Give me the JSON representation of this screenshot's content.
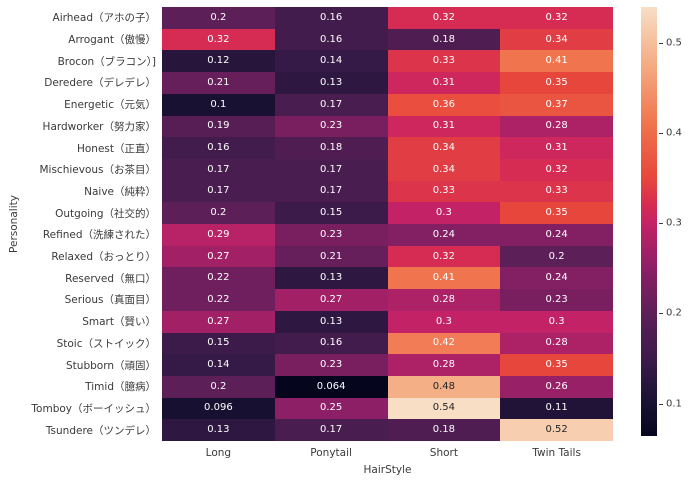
{
  "figure": {
    "background": "#ffffff",
    "label_color": "#3a3a3a",
    "annot_light": "#ffffff",
    "annot_dark": "#262626"
  },
  "chart_data": {
    "type": "heatmap",
    "title": "",
    "xlabel": "HairStyle",
    "ylabel": "Personality",
    "grid": false,
    "legend_position": "right-colorbar",
    "columns": [
      "Long",
      "Ponytail",
      "Short",
      "Twin Tails"
    ],
    "rows": [
      "Airhead（アホの子）",
      "Arrogant（傲慢）",
      "Brocon（ブラコン）]",
      "Deredere（デレデレ）",
      "Energetic（元気）",
      "Hardworker（努力家）",
      "Honest（正直）",
      "Mischievous（お茶目）",
      "Naive（純粋）",
      "Outgoing（社交的）",
      "Refined（洗練された）",
      "Relaxed（おっとり）",
      "Reserved（無口）",
      "Serious（真面目）",
      "Smart（賢い）",
      "Stoic（ストイック）",
      "Stubborn（頑固）",
      "Timid（臆病）",
      "Tomboy（ボーイッシュ）",
      "Tsundere（ツンデレ）"
    ],
    "values": [
      [
        0.2,
        0.16,
        0.32,
        0.32
      ],
      [
        0.32,
        0.16,
        0.18,
        0.34
      ],
      [
        0.12,
        0.14,
        0.33,
        0.41
      ],
      [
        0.21,
        0.13,
        0.31,
        0.35
      ],
      [
        0.1,
        0.17,
        0.36,
        0.37
      ],
      [
        0.19,
        0.23,
        0.31,
        0.28
      ],
      [
        0.16,
        0.18,
        0.34,
        0.31
      ],
      [
        0.17,
        0.17,
        0.34,
        0.32
      ],
      [
        0.17,
        0.17,
        0.33,
        0.33
      ],
      [
        0.2,
        0.15,
        0.3,
        0.35
      ],
      [
        0.29,
        0.23,
        0.24,
        0.24
      ],
      [
        0.27,
        0.21,
        0.32,
        0.2
      ],
      [
        0.22,
        0.13,
        0.41,
        0.24
      ],
      [
        0.22,
        0.27,
        0.28,
        0.23
      ],
      [
        0.27,
        0.13,
        0.3,
        0.3
      ],
      [
        0.15,
        0.16,
        0.42,
        0.28
      ],
      [
        0.14,
        0.23,
        0.28,
        0.35
      ],
      [
        0.2,
        0.064,
        0.48,
        0.26
      ],
      [
        0.096,
        0.25,
        0.54,
        0.11
      ],
      [
        0.13,
        0.17,
        0.18,
        0.52
      ]
    ],
    "value_format": ".2g",
    "colorbar": {
      "vmin": 0.064,
      "vmax": 0.54,
      "tick_labels": [
        "0.5",
        "0.4",
        "0.3",
        "0.2",
        "0.1"
      ],
      "tick_values": [
        0.5,
        0.4,
        0.3,
        0.2,
        0.1
      ]
    },
    "colormap": {
      "name": "rocket",
      "anchors": [
        [
          0.064,
          "#05051E"
        ],
        [
          0.1,
          "#191132"
        ],
        [
          0.15,
          "#3C1B4B"
        ],
        [
          0.2,
          "#5D1F58"
        ],
        [
          0.25,
          "#8C1F66"
        ],
        [
          0.3,
          "#C32366"
        ],
        [
          0.32,
          "#D62B53"
        ],
        [
          0.35,
          "#E7463C"
        ],
        [
          0.41,
          "#F0744D"
        ],
        [
          0.48,
          "#F4AF87"
        ],
        [
          0.54,
          "#F8DEC5"
        ]
      ]
    }
  }
}
